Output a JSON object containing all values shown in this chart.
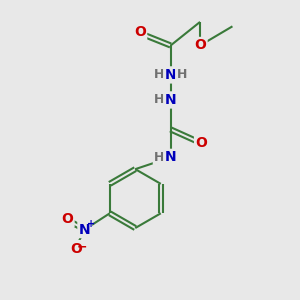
{
  "bg_color": "#e8e8e8",
  "bond_color": "#3a7a3a",
  "atom_colors": {
    "O": "#cc0000",
    "N": "#0000bb",
    "H": "#707070",
    "C": "#3a7a3a"
  },
  "figsize": [
    3.0,
    3.0
  ],
  "dpi": 100,
  "bond_lw": 1.5,
  "font_size": 10,
  "font_size_h": 9
}
